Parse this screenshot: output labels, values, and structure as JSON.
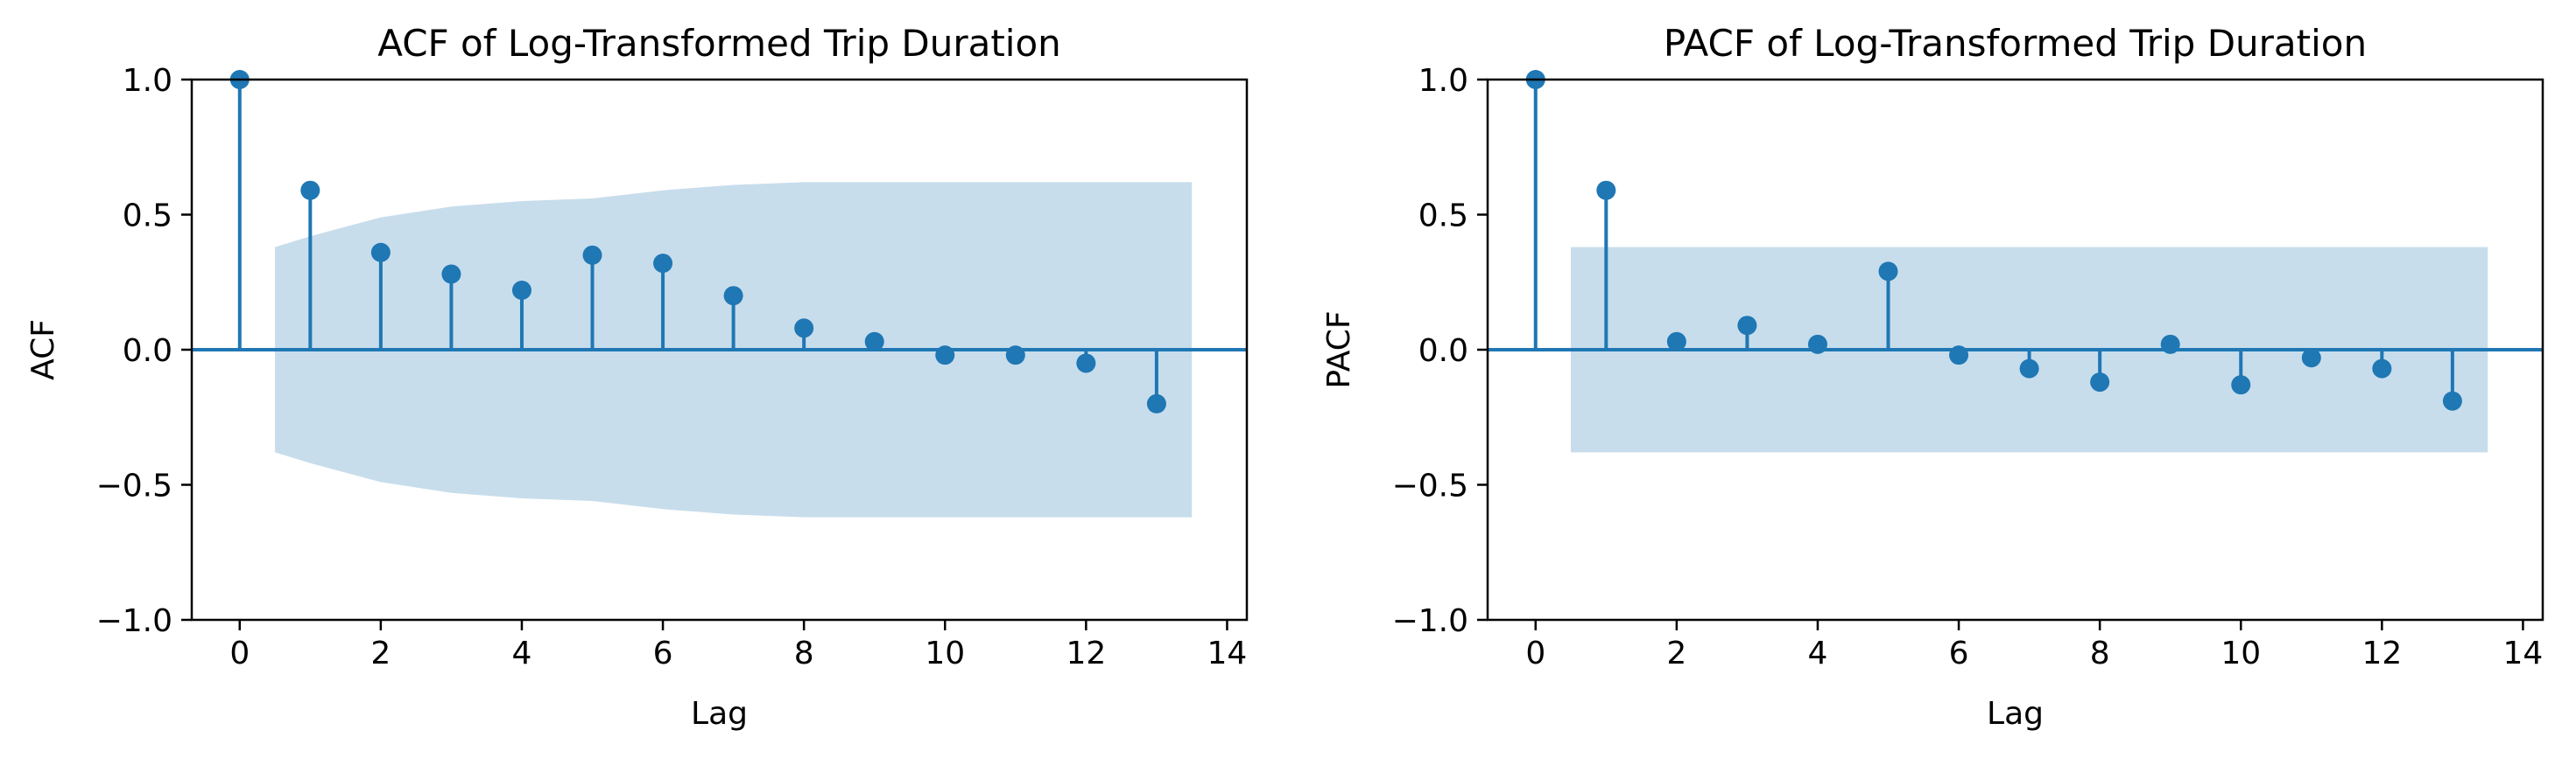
{
  "colors": {
    "stem": "#1f77b4",
    "confidence_band": "#1f77b4",
    "axis": "#000000",
    "background": "#ffffff"
  },
  "chart_data": [
    {
      "id": "acf",
      "type": "stem",
      "title": "ACF of Log-Transformed Trip Duration",
      "xlabel": "Lag",
      "ylabel": "ACF",
      "xlim": [
        -0.68,
        14.28
      ],
      "ylim": [
        -1.0,
        1.0
      ],
      "xticks": [
        0,
        2,
        4,
        6,
        8,
        10,
        12,
        14
      ],
      "yticks": [
        -1.0,
        -0.5,
        0.0,
        0.5,
        1.0
      ],
      "ytick_labels": [
        "−1.0",
        "−0.5",
        "0.0",
        "0.5",
        "1.0"
      ],
      "xtick_labels": [
        "0",
        "2",
        "4",
        "6",
        "8",
        "10",
        "12",
        "14"
      ],
      "lags": [
        0,
        1,
        2,
        3,
        4,
        5,
        6,
        7,
        8,
        9,
        10,
        11,
        12,
        13
      ],
      "values": [
        1.0,
        0.59,
        0.36,
        0.28,
        0.22,
        0.35,
        0.32,
        0.2,
        0.08,
        0.03,
        -0.02,
        -0.02,
        -0.05,
        -0.2
      ],
      "confidence_band": {
        "lags": [
          0.5,
          1,
          2,
          3,
          4,
          5,
          6,
          7,
          8,
          9,
          10,
          11,
          12,
          13,
          13.5
        ],
        "upper": [
          0.38,
          0.42,
          0.49,
          0.53,
          0.55,
          0.56,
          0.59,
          0.61,
          0.62,
          0.62,
          0.62,
          0.62,
          0.62,
          0.62,
          0.62
        ],
        "lower": [
          -0.38,
          -0.42,
          -0.49,
          -0.53,
          -0.55,
          -0.56,
          -0.59,
          -0.61,
          -0.62,
          -0.62,
          -0.62,
          -0.62,
          -0.62,
          -0.62,
          -0.62
        ]
      }
    },
    {
      "id": "pacf",
      "type": "stem",
      "title": "PACF of Log-Transformed Trip Duration",
      "xlabel": "Lag",
      "ylabel": "PACF",
      "xlim": [
        -0.68,
        14.28
      ],
      "ylim": [
        -1.0,
        1.0
      ],
      "xticks": [
        0,
        2,
        4,
        6,
        8,
        10,
        12,
        14
      ],
      "yticks": [
        -1.0,
        -0.5,
        0.0,
        0.5,
        1.0
      ],
      "ytick_labels": [
        "−1.0",
        "−0.5",
        "0.0",
        "0.5",
        "1.0"
      ],
      "xtick_labels": [
        "0",
        "2",
        "4",
        "6",
        "8",
        "10",
        "12",
        "14"
      ],
      "lags": [
        0,
        1,
        2,
        3,
        4,
        5,
        6,
        7,
        8,
        9,
        10,
        11,
        12,
        13
      ],
      "values": [
        1.0,
        0.59,
        0.03,
        0.09,
        0.02,
        0.29,
        -0.02,
        -0.07,
        -0.12,
        0.02,
        -0.13,
        -0.03,
        -0.07,
        -0.19
      ],
      "confidence_band": {
        "lags": [
          0.5,
          13.5
        ],
        "upper": [
          0.38,
          0.38
        ],
        "lower": [
          -0.38,
          -0.38
        ]
      }
    }
  ]
}
